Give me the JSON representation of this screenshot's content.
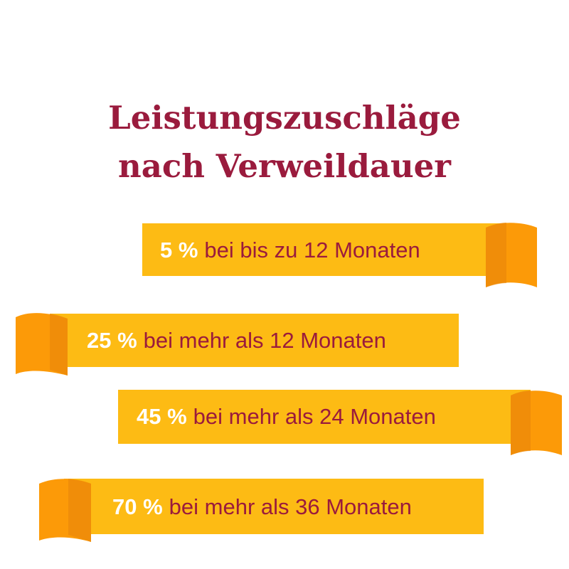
{
  "title": {
    "line1": "Leistungszuschläge",
    "line2": "nach Verweildauer"
  },
  "colors": {
    "title": "#9a1b3d",
    "ribbon": "#fdbb14",
    "ribbon_fold": "#fc9a08",
    "ribbon_fold_dark": "#e8860a",
    "percent_text": "#ffffff",
    "label_text": "#9a1b3d"
  },
  "ribbons": [
    {
      "percent": "5 %",
      "text": "bei bis zu 12 Monaten",
      "fold_side": "right"
    },
    {
      "percent": "25 %",
      "text": "bei mehr als 12 Monaten",
      "fold_side": "left"
    },
    {
      "percent": "45 %",
      "text": "bei mehr als 24 Monaten",
      "fold_side": "right"
    },
    {
      "percent": "70 %",
      "text": "bei mehr als 36 Monaten",
      "fold_side": "left"
    }
  ]
}
